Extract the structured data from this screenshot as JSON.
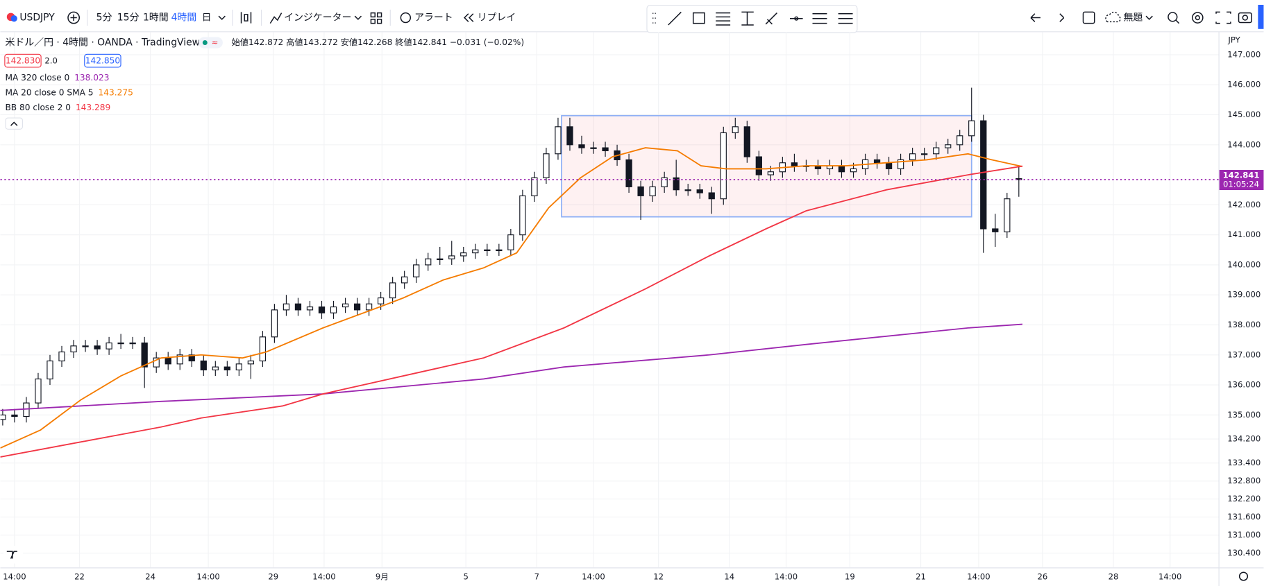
{
  "toolbar": {
    "symbol": "USDJPY",
    "intervals": [
      "5分",
      "15分",
      "1時間",
      "4時間",
      "日"
    ],
    "indicators": "インジケーター",
    "alert": "アラート",
    "replay": "リプレイ",
    "layout": "無題"
  },
  "legend": {
    "title": "米ドル／円 · 4時間 · OANDA · TradingView",
    "ohlc": "始値142.872 高値143.272 安値142.268 終値142.841 −0.031 (−0.02%)",
    "bid": "142.830",
    "spread": "2.0",
    "ask": "142.850"
  },
  "chart": {
    "type": "candlestick",
    "currency": "JPY",
    "xlim": [
      -0.2,
      102.9
    ],
    "ylim": [
      129.92,
      147.75
    ],
    "yticks": [
      {
        "value": 147,
        "label": "147.000"
      },
      {
        "value": 146,
        "label": "146.000"
      },
      {
        "value": 145,
        "label": "145.000"
      },
      {
        "value": 144,
        "label": "144.000"
      },
      {
        "value": 142,
        "label": "142.000"
      },
      {
        "value": 141,
        "label": "141.000"
      },
      {
        "value": 140,
        "label": "140.000"
      },
      {
        "value": 139,
        "label": "139.000"
      },
      {
        "value": 138,
        "label": "138.000"
      },
      {
        "value": 137,
        "label": "137.000"
      },
      {
        "value": 136,
        "label": "136.000"
      },
      {
        "value": 135,
        "label": "135.000"
      },
      {
        "value": 134.2,
        "label": "134.200"
      },
      {
        "value": 133.4,
        "label": "133.400"
      },
      {
        "value": 132.8,
        "label": "132.800"
      },
      {
        "value": 132.2,
        "label": "132.200"
      },
      {
        "value": 131.6,
        "label": "131.600"
      },
      {
        "value": 131,
        "label": "131.000"
      },
      {
        "value": 130.4,
        "label": "130.400"
      }
    ],
    "xticks": [
      {
        "value": 1.0,
        "label": "14:00"
      },
      {
        "value": 6.5,
        "label": "22"
      },
      {
        "value": 12.5,
        "label": "24"
      },
      {
        "value": 17.4,
        "label": "14:00"
      },
      {
        "value": 22.9,
        "label": "29"
      },
      {
        "value": 27.2,
        "label": "14:00"
      },
      {
        "value": 32.1,
        "label": "9月"
      },
      {
        "value": 39.2,
        "label": "5"
      },
      {
        "value": 45.2,
        "label": "7"
      },
      {
        "value": 50.0,
        "label": "14:00"
      },
      {
        "value": 55.5,
        "label": "12"
      },
      {
        "value": 61.5,
        "label": "14"
      },
      {
        "value": 66.3,
        "label": "14:00"
      },
      {
        "value": 71.7,
        "label": "19"
      },
      {
        "value": 77.7,
        "label": "21"
      },
      {
        "value": 82.6,
        "label": "14:00"
      },
      {
        "value": 88.0,
        "label": "26"
      },
      {
        "value": 94.0,
        "label": "28"
      },
      {
        "value": 98.8,
        "label": "14:00"
      }
    ],
    "candles": {
      "open": [
        134.85,
        135.0,
        134.95,
        135.4,
        136.2,
        136.8,
        137.1,
        137.3,
        137.3,
        137.2,
        137.4,
        137.4,
        137.4,
        136.6,
        136.9,
        136.7,
        137.0,
        136.8,
        136.5,
        136.6,
        136.5,
        136.7,
        136.8,
        137.6,
        138.5,
        138.7,
        138.5,
        138.6,
        138.4,
        138.6,
        138.7,
        138.5,
        138.7,
        138.9,
        139.4,
        139.6,
        140.0,
        140.2,
        140.2,
        140.3,
        140.4,
        140.5,
        140.5,
        140.5,
        141.0,
        142.3,
        142.9,
        143.7,
        144.6,
        144.0,
        143.9,
        143.9,
        143.8,
        143.5,
        142.6,
        142.3,
        142.6,
        142.9,
        142.5,
        142.5,
        142.4,
        142.2,
        144.4,
        144.6,
        143.6,
        143.0,
        143.1,
        143.4,
        143.3,
        143.3,
        143.2,
        143.3,
        143.1,
        143.2,
        143.5,
        143.4,
        143.2,
        143.5,
        143.7,
        143.7,
        143.9,
        144.0,
        144.3,
        144.8,
        141.2,
        141.1,
        142.872
      ],
      "high": [
        135.2,
        135.2,
        135.6,
        136.4,
        137.0,
        137.3,
        137.5,
        137.5,
        137.5,
        137.6,
        137.7,
        137.6,
        137.6,
        137.1,
        137.1,
        137.2,
        137.2,
        137.0,
        136.8,
        136.8,
        136.9,
        137.0,
        137.8,
        138.7,
        139.0,
        138.9,
        138.8,
        138.8,
        138.8,
        138.9,
        138.9,
        138.9,
        139.1,
        139.6,
        139.8,
        140.2,
        140.4,
        140.6,
        140.8,
        140.6,
        140.7,
        140.7,
        140.7,
        141.2,
        142.5,
        143.1,
        143.9,
        144.9,
        144.9,
        144.3,
        144.1,
        144.1,
        144.0,
        143.7,
        142.8,
        142.8,
        143.1,
        143.5,
        142.7,
        142.7,
        142.6,
        144.6,
        144.9,
        144.8,
        143.8,
        143.3,
        143.6,
        143.7,
        143.5,
        143.5,
        143.5,
        143.5,
        143.4,
        143.7,
        143.7,
        143.6,
        143.7,
        143.9,
        143.9,
        144.1,
        144.2,
        144.5,
        145.9,
        145.0,
        141.7,
        142.4,
        143.272
      ],
      "low": [
        134.65,
        134.75,
        134.75,
        135.2,
        136.0,
        136.6,
        136.9,
        137.1,
        137.0,
        137.0,
        137.2,
        137.2,
        135.9,
        136.4,
        136.5,
        136.5,
        136.6,
        136.3,
        136.3,
        136.3,
        136.3,
        136.2,
        136.6,
        137.4,
        138.3,
        138.3,
        138.3,
        138.2,
        138.2,
        138.4,
        138.3,
        138.3,
        138.5,
        138.7,
        139.2,
        139.4,
        139.8,
        140.0,
        140.0,
        140.1,
        140.2,
        140.3,
        140.3,
        140.3,
        140.8,
        142.1,
        142.7,
        143.5,
        143.8,
        143.7,
        143.7,
        143.6,
        143.3,
        142.4,
        141.5,
        142.1,
        142.4,
        142.3,
        142.3,
        142.2,
        141.7,
        142.0,
        144.2,
        143.4,
        142.8,
        142.8,
        142.9,
        143.1,
        143.1,
        143.0,
        143.0,
        142.9,
        142.9,
        143.0,
        143.2,
        143.0,
        143.0,
        143.3,
        143.5,
        143.5,
        143.7,
        143.8,
        144.1,
        140.4,
        140.6,
        140.9,
        142.268
      ],
      "close": [
        135.0,
        134.95,
        135.4,
        136.2,
        136.8,
        137.1,
        137.3,
        137.3,
        137.2,
        137.4,
        137.4,
        137.4,
        136.6,
        136.9,
        136.7,
        137.0,
        136.8,
        136.5,
        136.6,
        136.5,
        136.7,
        136.8,
        137.6,
        138.5,
        138.7,
        138.5,
        138.6,
        138.4,
        138.6,
        138.7,
        138.5,
        138.7,
        138.9,
        139.4,
        139.6,
        140.0,
        140.2,
        140.2,
        140.3,
        140.4,
        140.5,
        140.5,
        140.5,
        141.0,
        142.3,
        142.9,
        143.7,
        144.6,
        144.0,
        143.9,
        143.9,
        143.8,
        143.5,
        142.6,
        142.3,
        142.6,
        142.9,
        142.5,
        142.5,
        142.4,
        142.2,
        144.4,
        144.6,
        143.6,
        143.0,
        143.1,
        143.4,
        143.3,
        143.3,
        143.2,
        143.3,
        143.1,
        143.2,
        143.5,
        143.4,
        143.2,
        143.5,
        143.7,
        143.7,
        143.9,
        144.0,
        144.3,
        144.8,
        141.2,
        141.1,
        142.2,
        142.841
      ]
    },
    "indicators": [
      {
        "name": "MA 320 close 0",
        "last": "138.023",
        "color": "#9c27b0",
        "x": [
          -0.2,
          13.4,
          27.1,
          40.7,
          47.5,
          59.8,
          68.0,
          81.7,
          86.3
        ],
        "values": [
          135.15,
          135.45,
          135.7,
          136.2,
          136.6,
          137.0,
          137.35,
          137.9,
          138.023
        ]
      },
      {
        "name": "MA 20 close 0 SMA 5",
        "last": "143.275",
        "color": "#f57c00",
        "x": [
          -0.2,
          3.2,
          6.6,
          10.0,
          13.4,
          16.8,
          20.3,
          22.3,
          27.1,
          31.9,
          33.9,
          37.3,
          40.7,
          43.5,
          46.2,
          48.9,
          51.6,
          54.4,
          57.1,
          59.1,
          61.2,
          64.6,
          68.0,
          71.4,
          74.8,
          78.2,
          81.7,
          83.7,
          86.3
        ],
        "values": [
          133.9,
          134.5,
          135.5,
          136.3,
          136.9,
          137.0,
          136.9,
          137.1,
          137.9,
          138.6,
          138.9,
          139.5,
          139.9,
          140.4,
          141.9,
          142.9,
          143.6,
          143.9,
          143.8,
          143.3,
          143.2,
          143.2,
          143.3,
          143.3,
          143.4,
          143.5,
          143.7,
          143.5,
          143.275
        ]
      },
      {
        "name": "BB 80 close 2 0",
        "last": "143.289",
        "color": "#f23645",
        "x": [
          -0.2,
          6.6,
          13.4,
          16.8,
          23.7,
          27.1,
          33.9,
          40.7,
          47.5,
          54.4,
          59.8,
          64.6,
          68.0,
          74.8,
          81.7,
          86.3
        ],
        "values": [
          133.6,
          134.1,
          134.6,
          134.9,
          135.3,
          135.7,
          136.3,
          136.9,
          137.9,
          139.2,
          140.3,
          141.2,
          141.8,
          142.5,
          143.0,
          143.289
        ]
      }
    ],
    "range_box": {
      "x": [
        47.3,
        82.0
      ],
      "y": [
        141.6,
        144.97
      ]
    },
    "last_price_label": "142.841",
    "countdown": "01:05:24"
  }
}
